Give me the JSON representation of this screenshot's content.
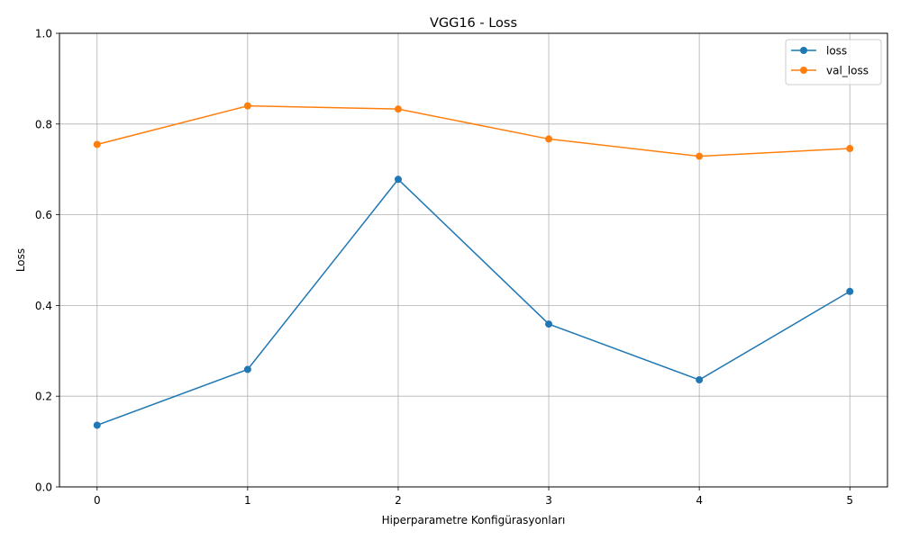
{
  "chart_data": {
    "type": "line",
    "title": "VGG16 - Loss",
    "xlabel": "Hiperparametre Konfigürasyonları",
    "ylabel": "Loss",
    "x": [
      0,
      1,
      2,
      3,
      4,
      5
    ],
    "x_tick_labels": [
      "0",
      "1",
      "2",
      "3",
      "4",
      "5"
    ],
    "y_ticks": [
      0.0,
      0.2,
      0.4,
      0.6,
      0.8,
      1.0
    ],
    "y_tick_labels": [
      "0.0",
      "0.2",
      "0.4",
      "0.6",
      "0.8",
      "1.0"
    ],
    "xlim": [
      -0.25,
      5.25
    ],
    "ylim": [
      0.0,
      1.0
    ],
    "grid": true,
    "legend_position": "top-right",
    "series": [
      {
        "name": "loss",
        "color": "#1f77b4",
        "marker": "circle",
        "values": [
          0.136,
          0.259,
          0.678,
          0.359,
          0.236,
          0.431
        ]
      },
      {
        "name": "val_loss",
        "color": "#ff7f0e",
        "marker": "circle",
        "values": [
          0.755,
          0.84,
          0.833,
          0.767,
          0.729,
          0.746
        ]
      }
    ]
  }
}
